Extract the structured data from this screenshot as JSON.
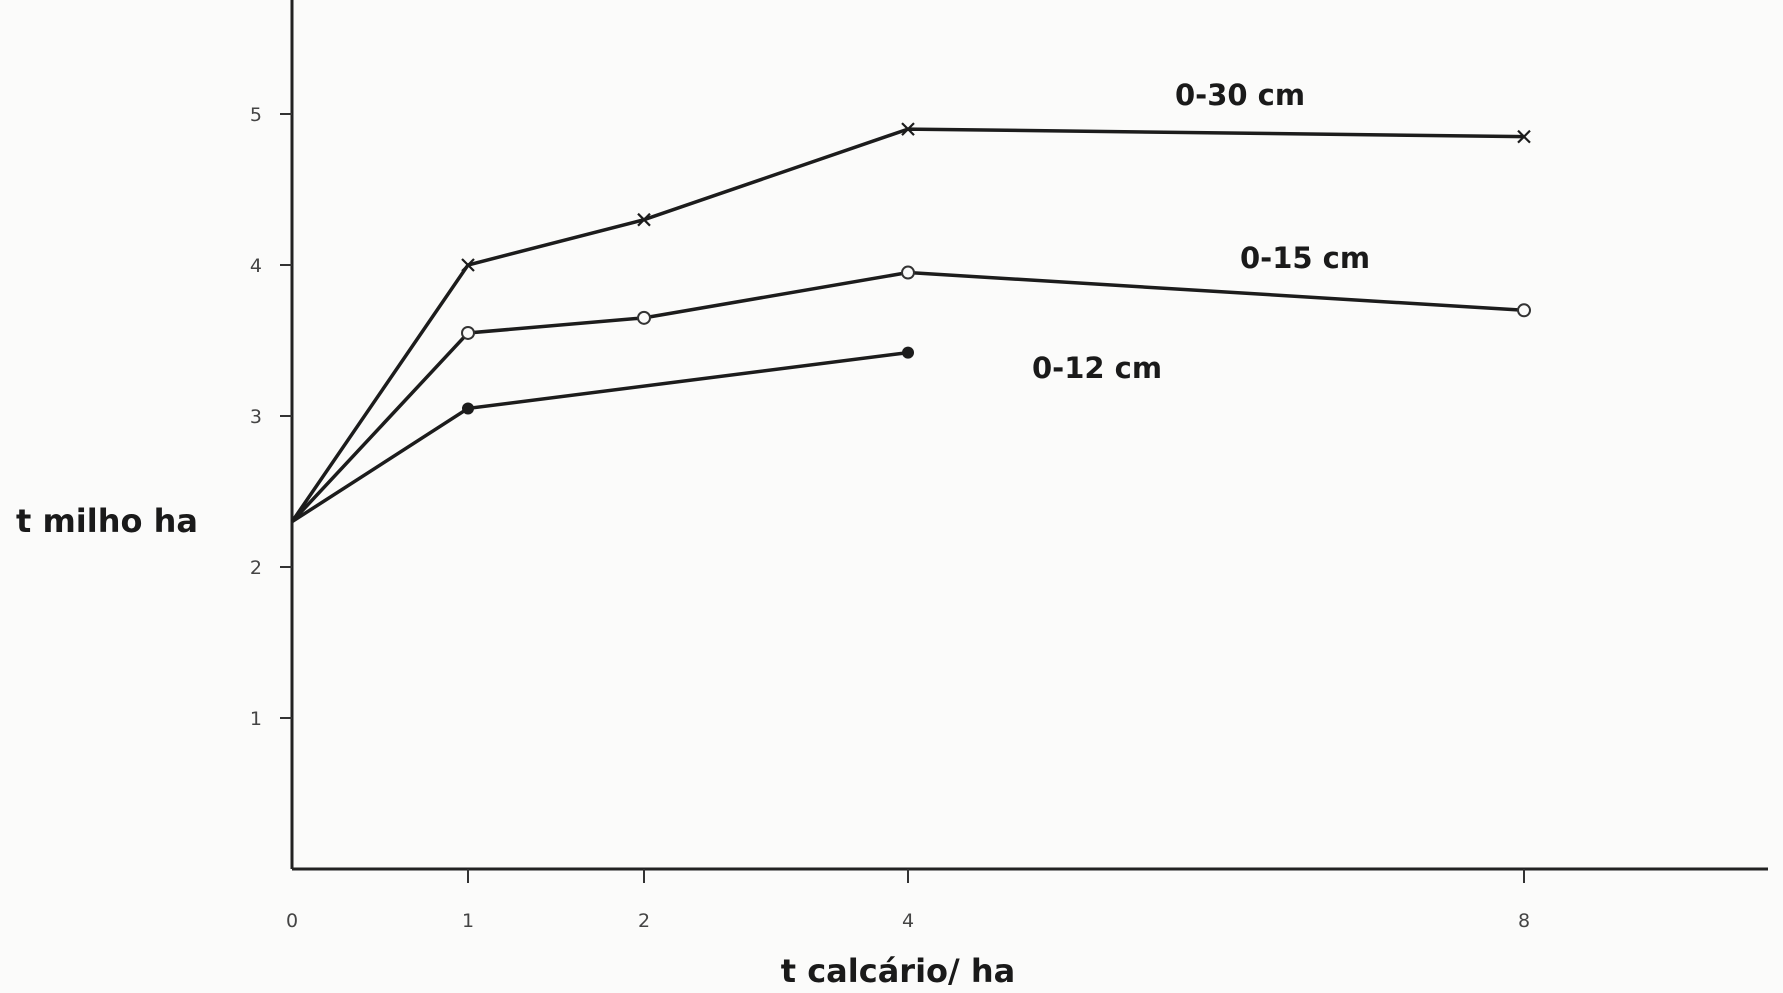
{
  "chart_data": {
    "type": "line",
    "xlabel": "t calcário/ ha",
    "ylabel": "t milho  ha",
    "x_ticks": [
      "0",
      "1",
      "2",
      "4",
      "8"
    ],
    "y_ticks": [
      "1",
      "2",
      "3",
      "4",
      "5"
    ],
    "ylim": [
      0,
      5.5
    ],
    "grid": false,
    "series": [
      {
        "name": "0-30 cm",
        "marker": "x",
        "points": [
          {
            "x": 0,
            "y": 2.3
          },
          {
            "x": 1,
            "y": 4.0
          },
          {
            "x": 2,
            "y": 4.3
          },
          {
            "x": 4,
            "y": 4.9
          },
          {
            "x": 8,
            "y": 4.85
          }
        ]
      },
      {
        "name": "0-15 cm",
        "marker": "o",
        "points": [
          {
            "x": 0,
            "y": 2.3
          },
          {
            "x": 1,
            "y": 3.55
          },
          {
            "x": 2,
            "y": 3.65
          },
          {
            "x": 4,
            "y": 3.95
          },
          {
            "x": 8,
            "y": 3.7
          }
        ]
      },
      {
        "name": "0-12 cm",
        "marker": "dot",
        "points": [
          {
            "x": 0,
            "y": 2.3
          },
          {
            "x": 1,
            "y": 3.05
          },
          {
            "x": 4,
            "y": 3.42
          }
        ]
      }
    ]
  }
}
